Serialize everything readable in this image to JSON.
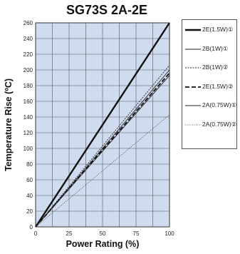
{
  "chart_data": {
    "type": "line",
    "title": "SG73S 2A-2E",
    "xlabel": "Power Rating (%)",
    "ylabel": "Temperature Rise (ºC)",
    "xlim": [
      0,
      100
    ],
    "ylim": [
      0,
      260
    ],
    "xticks": [
      "0",
      "25",
      "50",
      "75",
      "100"
    ],
    "yticks": [
      "0",
      "20",
      "40",
      "60",
      "80",
      "100",
      "120",
      "140",
      "160",
      "180",
      "200",
      "220",
      "240",
      "260"
    ],
    "grid": true,
    "legend_position": "right",
    "background_color": "#cfdcf0",
    "series": [
      {
        "name": "2E(1.5W)①",
        "x": [
          0,
          100
        ],
        "y": [
          0,
          260
        ],
        "color": "#111111",
        "style": "solid-thick"
      },
      {
        "name": "2B(1W)①",
        "x": [
          0,
          100
        ],
        "y": [
          0,
          200
        ],
        "color": "#222222",
        "style": "solid"
      },
      {
        "name": "2B(1W)②",
        "x": [
          0,
          100
        ],
        "y": [
          0,
          206
        ],
        "color": "#222222",
        "style": "dotted"
      },
      {
        "name": "2E(1.5W)②",
        "x": [
          0,
          100
        ],
        "y": [
          0,
          196
        ],
        "color": "#111111",
        "style": "dashed-thick"
      },
      {
        "name": "2A(0.75W)①",
        "x": [
          0,
          100
        ],
        "y": [
          0,
          193
        ],
        "color": "#222222",
        "style": "solid"
      },
      {
        "name": "2A(0.75W)②",
        "x": [
          0,
          100
        ],
        "y": [
          0,
          143
        ],
        "color": "#333333",
        "style": "fine-dotted"
      }
    ]
  }
}
